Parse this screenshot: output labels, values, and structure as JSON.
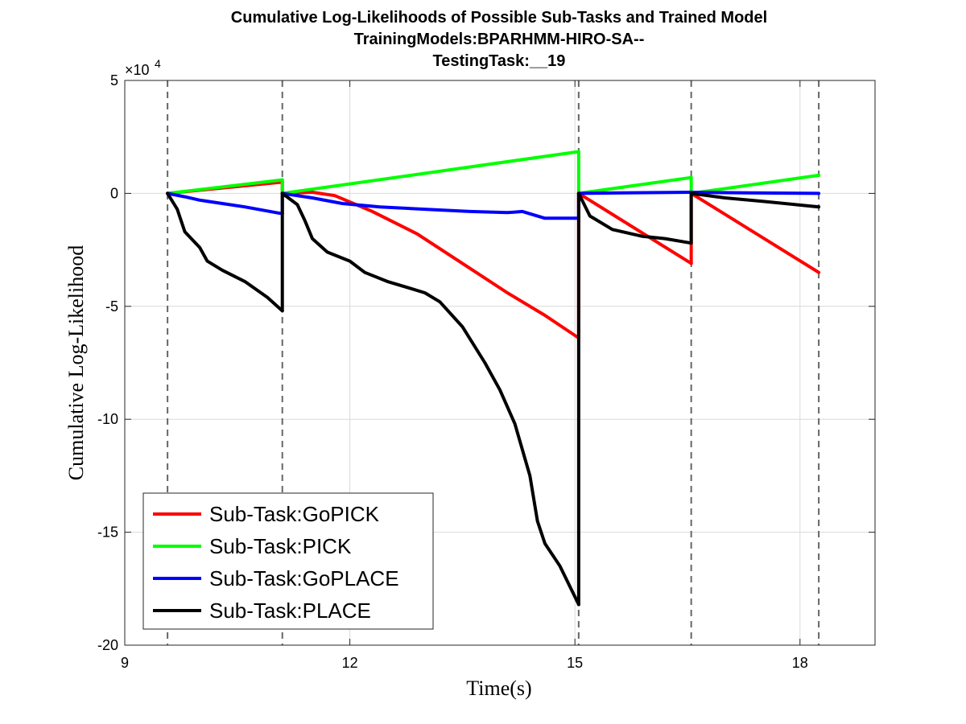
{
  "chart_data": {
    "type": "line",
    "title": [
      "Cumulative Log-Likelihoods of Possible Sub-Tasks and Trained Model",
      "TrainingModels:BPARHMM-HIRO-SA--",
      "TestingTask:__19"
    ],
    "xlabel": "Time(s)",
    "ylabel": "Cumulative Log-Likelihood",
    "xlim": [
      9,
      19
    ],
    "ylim": [
      -20,
      5
    ],
    "xticks": [
      9,
      12,
      15,
      18
    ],
    "yticks": [
      5,
      0,
      -5,
      -10,
      -15,
      -20
    ],
    "xtick_labels": [
      "9",
      "12",
      "15",
      "18"
    ],
    "ytick_labels": [
      "5",
      "0",
      "-5",
      "-10",
      "-15",
      "-20"
    ],
    "y_exponent_base": "×10",
    "y_exponent_power": "4",
    "grid": true,
    "vlines": [
      9.57,
      11.1,
      15.05,
      16.55,
      18.25
    ],
    "legend_position": "bottom-left",
    "series": [
      {
        "name": "Sub-Task:GoPICK",
        "color": "#ff0000",
        "segments": [
          [
            [
              9.57,
              0
            ],
            [
              11.1,
              0.5
            ]
          ],
          [
            [
              11.1,
              0
            ],
            [
              11.5,
              0.05
            ],
            [
              11.8,
              -0.1
            ],
            [
              12.3,
              -0.8
            ],
            [
              12.9,
              -1.8
            ],
            [
              13.5,
              -3.1
            ],
            [
              14.1,
              -4.4
            ],
            [
              14.6,
              -5.4
            ],
            [
              15.05,
              -6.4
            ]
          ],
          [
            [
              15.05,
              0
            ],
            [
              16.55,
              -3.1
            ]
          ],
          [
            [
              16.55,
              0
            ],
            [
              18.25,
              -3.5
            ]
          ]
        ]
      },
      {
        "name": "Sub-Task:PICK",
        "color": "#00ff00",
        "segments": [
          [
            [
              9.57,
              0
            ],
            [
              11.1,
              0.6
            ]
          ],
          [
            [
              11.1,
              0
            ],
            [
              15.05,
              1.85
            ]
          ],
          [
            [
              15.05,
              0
            ],
            [
              16.55,
              0.7
            ]
          ],
          [
            [
              16.55,
              0
            ],
            [
              18.25,
              0.8
            ]
          ]
        ]
      },
      {
        "name": "Sub-Task:GoPLACE",
        "color": "#0000ff",
        "segments": [
          [
            [
              9.57,
              0
            ],
            [
              9.8,
              -0.15
            ],
            [
              10.0,
              -0.3
            ],
            [
              10.3,
              -0.45
            ],
            [
              10.6,
              -0.6
            ],
            [
              11.1,
              -0.9
            ]
          ],
          [
            [
              11.1,
              0
            ],
            [
              11.5,
              -0.2
            ],
            [
              11.9,
              -0.45
            ],
            [
              12.4,
              -0.6
            ],
            [
              13.0,
              -0.7
            ],
            [
              13.6,
              -0.8
            ],
            [
              14.1,
              -0.85
            ],
            [
              14.3,
              -0.8
            ],
            [
              14.6,
              -1.1
            ],
            [
              15.05,
              -1.1
            ]
          ],
          [
            [
              15.05,
              0
            ],
            [
              15.8,
              0.03
            ],
            [
              16.55,
              0.05
            ]
          ],
          [
            [
              16.55,
              0.05
            ],
            [
              17.3,
              0.02
            ],
            [
              18.25,
              0
            ]
          ]
        ]
      },
      {
        "name": "Sub-Task:PLACE",
        "color": "#000000",
        "segments": [
          [
            [
              9.57,
              0
            ],
            [
              9.7,
              -0.7
            ],
            [
              9.8,
              -1.7
            ],
            [
              10.0,
              -2.4
            ],
            [
              10.1,
              -3.0
            ],
            [
              10.3,
              -3.4
            ],
            [
              10.6,
              -3.9
            ],
            [
              10.9,
              -4.6
            ],
            [
              11.1,
              -5.2
            ]
          ],
          [
            [
              11.1,
              0
            ],
            [
              11.3,
              -0.5
            ],
            [
              11.4,
              -1.2
            ],
            [
              11.5,
              -2.0
            ],
            [
              11.7,
              -2.6
            ],
            [
              12.0,
              -3.0
            ],
            [
              12.2,
              -3.5
            ],
            [
              12.5,
              -3.9
            ],
            [
              12.8,
              -4.2
            ],
            [
              13.0,
              -4.4
            ],
            [
              13.2,
              -4.8
            ],
            [
              13.5,
              -5.9
            ],
            [
              13.8,
              -7.5
            ],
            [
              14.0,
              -8.7
            ],
            [
              14.2,
              -10.2
            ],
            [
              14.4,
              -12.5
            ],
            [
              14.5,
              -14.5
            ],
            [
              14.6,
              -15.5
            ],
            [
              14.8,
              -16.5
            ],
            [
              15.05,
              -18.2
            ]
          ],
          [
            [
              15.05,
              0
            ],
            [
              15.2,
              -1.0
            ],
            [
              15.5,
              -1.6
            ],
            [
              15.9,
              -1.9
            ],
            [
              16.2,
              -2.0
            ],
            [
              16.55,
              -2.2
            ]
          ],
          [
            [
              16.55,
              0
            ],
            [
              17.0,
              -0.2
            ],
            [
              17.5,
              -0.35
            ],
            [
              18.25,
              -0.6
            ]
          ]
        ]
      }
    ]
  }
}
